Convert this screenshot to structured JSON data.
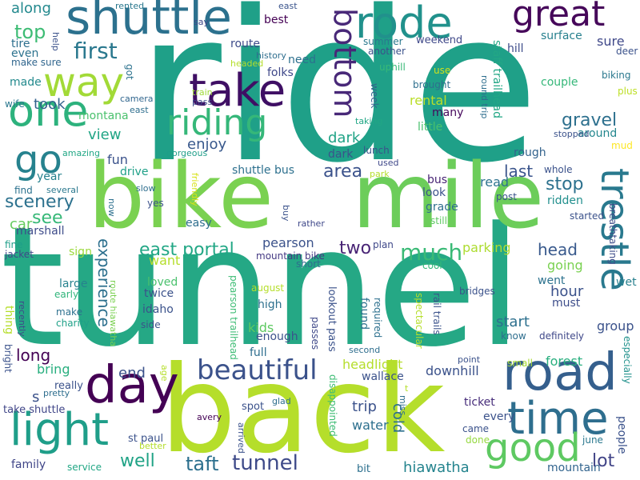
{
  "words": [
    {
      "text": "ride",
      "color": "#1fa088"
    },
    {
      "text": "tunnel",
      "color": "#25a885"
    },
    {
      "text": "bike",
      "color": "#7ad151"
    },
    {
      "text": "mile",
      "color": "#6ccd5a"
    },
    {
      "text": "back",
      "color": "#b5de2b"
    },
    {
      "text": "shuttle",
      "color": "#2c718e"
    },
    {
      "text": "rode",
      "color": "#21918c"
    },
    {
      "text": "great",
      "color": "#46075a"
    },
    {
      "text": "one",
      "color": "#2db27d"
    },
    {
      "text": "way",
      "color": "#a2da37"
    },
    {
      "text": "take",
      "color": "#3f0f64"
    },
    {
      "text": "riding",
      "color": "#35b779"
    },
    {
      "text": "go",
      "color": "#26828e"
    },
    {
      "text": "road",
      "color": "#355f8d"
    },
    {
      "text": "day",
      "color": "#440154"
    },
    {
      "text": "light",
      "color": "#1f9e89"
    },
    {
      "text": "time",
      "color": "#2e6e8e"
    },
    {
      "text": "good",
      "color": "#5ec962"
    },
    {
      "text": "trestle",
      "color": "#29798e"
    },
    {
      "text": "beautiful",
      "color": "#3b528b"
    },
    {
      "text": "bottom",
      "color": "#482878"
    },
    {
      "text": "first",
      "color": "#2a788e"
    },
    {
      "text": "top",
      "color": "#3dbc74"
    },
    {
      "text": "along",
      "color": "#23898e"
    },
    {
      "text": "tire",
      "color": "#2e6f8e"
    },
    {
      "text": "make sure",
      "color": "#31668e"
    },
    {
      "text": "even",
      "color": "#2c728e"
    },
    {
      "text": "made",
      "color": "#238a8d"
    },
    {
      "text": "wife",
      "color": "#2a778e"
    },
    {
      "text": "took",
      "color": "#33638d"
    },
    {
      "text": "montana",
      "color": "#4ac16d"
    },
    {
      "text": "view",
      "color": "#21a585"
    },
    {
      "text": "enjoy",
      "color": "#38588c"
    },
    {
      "text": "dark",
      "color": "#20a386"
    },
    {
      "text": "area",
      "color": "#3b528b"
    },
    {
      "text": "scenery",
      "color": "#2c718e"
    },
    {
      "text": "see",
      "color": "#37b878"
    },
    {
      "text": "year",
      "color": "#26828e"
    },
    {
      "text": "find",
      "color": "#2c728e"
    },
    {
      "text": "car",
      "color": "#65cb5e"
    },
    {
      "text": "marshall",
      "color": "#3e4c8a"
    },
    {
      "text": "fine",
      "color": "#1f9e89"
    },
    {
      "text": "jacket",
      "color": "#3f4889"
    },
    {
      "text": "sign",
      "color": "#9bd93c"
    },
    {
      "text": "large",
      "color": "#26828e"
    },
    {
      "text": "early",
      "color": "#31b57b"
    },
    {
      "text": "make",
      "color": "#2d708e"
    },
    {
      "text": "charity",
      "color": "#1fa088"
    },
    {
      "text": "long",
      "color": "#440154"
    },
    {
      "text": "bring",
      "color": "#29af7f"
    },
    {
      "text": "family",
      "color": "#404688"
    },
    {
      "text": "take shuttle",
      "color": "#404688"
    },
    {
      "text": "service",
      "color": "#22a785"
    },
    {
      "text": "well",
      "color": "#20a386"
    },
    {
      "text": "taft",
      "color": "#2d708e"
    },
    {
      "text": "tunnel",
      "color": "#3e4a89"
    },
    {
      "text": "hiawatha",
      "color": "#25848e"
    },
    {
      "text": "mountain",
      "color": "#32648e"
    },
    {
      "text": "lot",
      "color": "#414487"
    },
    {
      "text": "people",
      "color": "#3b528b"
    },
    {
      "text": "june",
      "color": "#2a788e"
    },
    {
      "text": "every",
      "color": "#3b528b"
    },
    {
      "text": "came",
      "color": "#3b528b"
    },
    {
      "text": "done",
      "color": "#95d840"
    },
    {
      "text": "ticket",
      "color": "#472d7b"
    },
    {
      "text": "forest",
      "color": "#29af7f"
    },
    {
      "text": "small",
      "color": "#a8db34"
    },
    {
      "text": "especially",
      "color": "#21918c"
    },
    {
      "text": "group",
      "color": "#3b528b"
    },
    {
      "text": "wet",
      "color": "#27808e"
    },
    {
      "text": "must",
      "color": "#3d4d8a"
    },
    {
      "text": "went",
      "color": "#2c728e"
    },
    {
      "text": "hour",
      "color": "#3b528b"
    },
    {
      "text": "going",
      "color": "#7ad151"
    },
    {
      "text": "head",
      "color": "#38598c"
    },
    {
      "text": "parking",
      "color": "#addc30"
    },
    {
      "text": "much",
      "color": "#3aba76"
    },
    {
      "text": "two",
      "color": "#482475"
    },
    {
      "text": "east portal",
      "color": "#22a785"
    },
    {
      "text": "pearson",
      "color": "#3b528b"
    },
    {
      "text": "mountain bike",
      "color": "#443983"
    },
    {
      "text": "short",
      "color": "#2e6e8e"
    },
    {
      "text": "cool",
      "color": "#35b779"
    },
    {
      "text": "plan",
      "color": "#3f4889"
    },
    {
      "text": "breathtaking",
      "color": "#3e4c8a"
    },
    {
      "text": "started",
      "color": "#3b528b"
    },
    {
      "text": "ridden",
      "color": "#218f8d"
    },
    {
      "text": "stop",
      "color": "#2c718e"
    },
    {
      "text": "read",
      "color": "#2c728e"
    },
    {
      "text": "post",
      "color": "#3a538b"
    },
    {
      "text": "last",
      "color": "#3a548c"
    },
    {
      "text": "whole",
      "color": "#3b528b"
    },
    {
      "text": "rough",
      "color": "#33638d"
    },
    {
      "text": "gravel",
      "color": "#2d708e"
    },
    {
      "text": "around",
      "color": "#24878e"
    },
    {
      "text": "stopped",
      "color": "#3b528b"
    },
    {
      "text": "mud",
      "color": "#fde725"
    },
    {
      "text": "plus",
      "color": "#bddf26"
    },
    {
      "text": "deer",
      "color": "#3b528b"
    },
    {
      "text": "biking",
      "color": "#2a788e"
    },
    {
      "text": "couple",
      "color": "#35b779"
    },
    {
      "text": "staff trailhead",
      "color": "#22a785"
    },
    {
      "text": "round trip",
      "color": "#2e6e8e"
    },
    {
      "text": "hill",
      "color": "#3e4c8a"
    },
    {
      "text": "surface",
      "color": "#27808e"
    },
    {
      "text": "sure",
      "color": "#3f4889"
    },
    {
      "text": "rental",
      "color": "#bade28"
    },
    {
      "text": "many",
      "color": "#46085c"
    },
    {
      "text": "little",
      "color": "#4ac16d"
    },
    {
      "text": "taking",
      "color": "#21a685"
    },
    {
      "text": "use",
      "color": "#cde11d"
    },
    {
      "text": "brought",
      "color": "#2e6f8e"
    },
    {
      "text": "uphill",
      "color": "#38b977"
    },
    {
      "text": "another",
      "color": "#3b528b"
    },
    {
      "text": "weekend",
      "color": "#3f4889"
    },
    {
      "text": "summer",
      "color": "#2a788e"
    },
    {
      "text": "week",
      "color": "#33638d"
    },
    {
      "text": "need",
      "color": "#2d708e"
    },
    {
      "text": "best",
      "color": "#440154"
    },
    {
      "text": "east",
      "color": "#3a548c"
    },
    {
      "text": "say",
      "color": "#3f4889"
    },
    {
      "text": "rented",
      "color": "#2a788e"
    },
    {
      "text": "route",
      "color": "#3e4c8a"
    },
    {
      "text": "headed",
      "color": "#b5de2b"
    },
    {
      "text": "history",
      "color": "#2e6e8e"
    },
    {
      "text": "got",
      "color": "#2c728e"
    },
    {
      "text": "help",
      "color": "#3b528b"
    },
    {
      "text": "folks",
      "color": "#3f4889"
    },
    {
      "text": "train",
      "color": "#a0da39"
    },
    {
      "text": "pass",
      "color": "#3e4c8a"
    },
    {
      "text": "camera",
      "color": "#31668e"
    },
    {
      "text": "east",
      "color": "#2e6e8e"
    },
    {
      "text": "gorgeous",
      "color": "#1f9e89"
    },
    {
      "text": "amazing",
      "color": "#22a785"
    },
    {
      "text": "fun",
      "color": "#3b528b"
    },
    {
      "text": "drive",
      "color": "#1fa088"
    },
    {
      "text": "several",
      "color": "#2a788e"
    },
    {
      "text": "slow",
      "color": "#2e6e8e"
    },
    {
      "text": "yes",
      "color": "#3b528b"
    },
    {
      "text": "now",
      "color": "#2d708e"
    },
    {
      "text": "friendly",
      "color": "#d8e219"
    },
    {
      "text": "easy",
      "color": "#2e6e8e"
    },
    {
      "text": "buy",
      "color": "#3b528b"
    },
    {
      "text": "rather",
      "color": "#3f4889"
    },
    {
      "text": "shuttle bus",
      "color": "#2d708e"
    },
    {
      "text": "dark",
      "color": "#3b528b"
    },
    {
      "text": "used",
      "color": "#3f4889"
    },
    {
      "text": "park",
      "color": "#b5de2b"
    },
    {
      "text": "lunch",
      "color": "#3b528b"
    },
    {
      "text": "bus",
      "color": "#482475"
    },
    {
      "text": "look",
      "color": "#3b528b"
    },
    {
      "text": "grade",
      "color": "#2e6e8e"
    },
    {
      "text": "still",
      "color": "#5ec962"
    },
    {
      "text": "want",
      "color": "#b5de2b"
    },
    {
      "text": "experience",
      "color": "#2d708e"
    },
    {
      "text": "loved",
      "color": "#4ac16d"
    },
    {
      "text": "twice",
      "color": "#3b528b"
    },
    {
      "text": "idaho",
      "color": "#3b528b"
    },
    {
      "text": "side",
      "color": "#3b528b"
    },
    {
      "text": "route hiawatha",
      "color": "#7ad151"
    },
    {
      "text": "recently",
      "color": "#3f4889"
    },
    {
      "text": "thing",
      "color": "#b5de2b"
    },
    {
      "text": "kids",
      "color": "#5ec962"
    },
    {
      "text": "enough",
      "color": "#3b528b"
    },
    {
      "text": "full",
      "color": "#2e6e8e"
    },
    {
      "text": "high",
      "color": "#2d708e"
    },
    {
      "text": "august",
      "color": "#b5de2b"
    },
    {
      "text": "pearson trailhead",
      "color": "#3dbc74"
    },
    {
      "text": "lookout pass",
      "color": "#3b528b"
    },
    {
      "text": "passes",
      "color": "#3f4889"
    },
    {
      "text": "found",
      "color": "#2c718e"
    },
    {
      "text": "required",
      "color": "#2d708e"
    },
    {
      "text": "spectacular",
      "color": "#b5de2b"
    },
    {
      "text": "rail trails",
      "color": "#3b528b"
    },
    {
      "text": "bridges",
      "color": "#3b528b"
    },
    {
      "text": "second",
      "color": "#2e6e8e"
    },
    {
      "text": "start",
      "color": "#2d708e"
    },
    {
      "text": "definitely",
      "color": "#3f4889"
    },
    {
      "text": "know",
      "color": "#2e6e8e"
    },
    {
      "text": "point",
      "color": "#3b528b"
    },
    {
      "text": "end",
      "color": "#3b528b"
    },
    {
      "text": "s",
      "color": "#3b528b"
    },
    {
      "text": "bright",
      "color": "#3b528b"
    },
    {
      "text": "age",
      "color": "#b5de2b"
    },
    {
      "text": "really",
      "color": "#3b528b"
    },
    {
      "text": "pretty",
      "color": "#2e6e8e"
    },
    {
      "text": "headlight",
      "color": "#b5de2b"
    },
    {
      "text": "wallace",
      "color": "#3b528b"
    },
    {
      "text": "trip",
      "color": "#3b528b"
    },
    {
      "text": "water",
      "color": "#2d708e"
    },
    {
      "text": "cold",
      "color": "#2d708e"
    },
    {
      "text": "downhill",
      "color": "#3b528b"
    },
    {
      "text": "t",
      "color": "#b5de2b"
    },
    {
      "text": "miss",
      "color": "#2e6e8e"
    },
    {
      "text": "disappointed",
      "color": "#3dbc74"
    },
    {
      "text": "glad",
      "color": "#2e6e8e"
    },
    {
      "text": "spot",
      "color": "#3b528b"
    },
    {
      "text": "avery",
      "color": "#440154"
    },
    {
      "text": "st paul",
      "color": "#3b528b"
    },
    {
      "text": "better",
      "color": "#b5de2b"
    },
    {
      "text": "arrived",
      "color": "#3b528b"
    },
    {
      "text": "bit",
      "color": "#2d708e"
    }
  ]
}
